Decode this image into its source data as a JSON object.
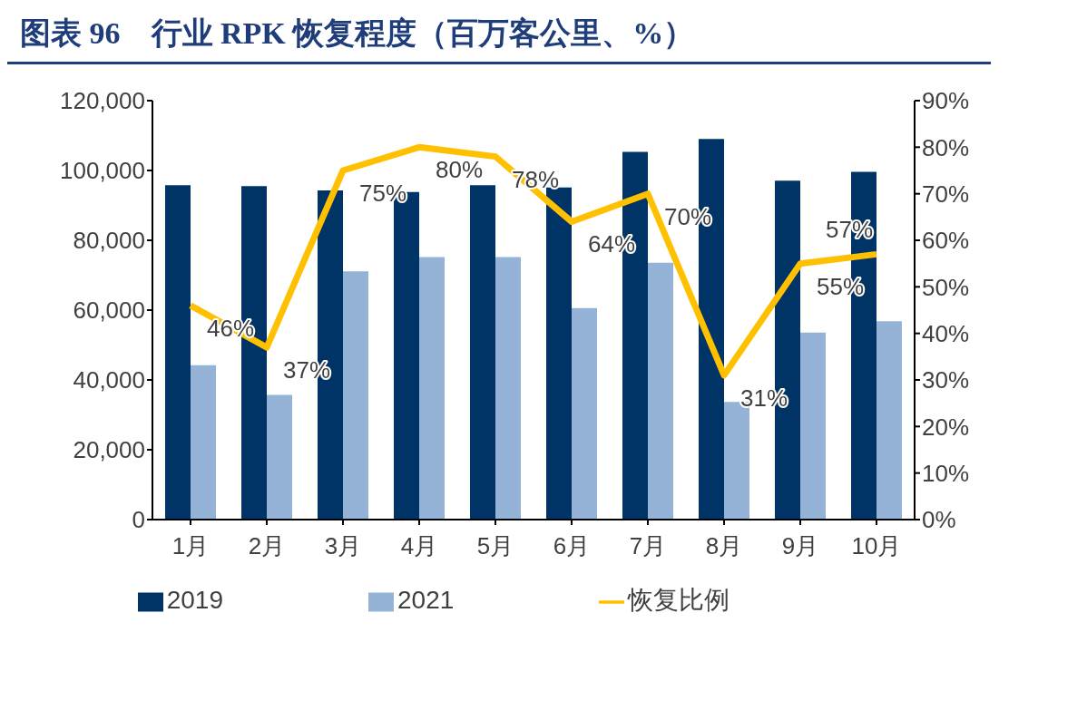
{
  "chart_data": {
    "type": "bar",
    "title": "图表 96　行业 RPK 恢复程度（百万客公里、%）",
    "categories": [
      "1月",
      "2月",
      "3月",
      "4月",
      "5月",
      "6月",
      "7月",
      "8月",
      "9月",
      "10月"
    ],
    "series": [
      {
        "name": "2019",
        "color": "#003366",
        "values": [
          95800,
          95500,
          94300,
          93800,
          95800,
          95100,
          105300,
          109000,
          97100,
          99600
        ]
      },
      {
        "name": "2021",
        "color": "#95b3d7",
        "values": [
          44200,
          35700,
          71100,
          75200,
          75200,
          60600,
          73600,
          33700,
          53600,
          56800
        ]
      },
      {
        "name": "恢复比例",
        "type": "line",
        "axis": "y2",
        "color": "#ffc000",
        "values": [
          46,
          37,
          75,
          80,
          78,
          64,
          70,
          31,
          55,
          57
        ],
        "value_labels": [
          "46%",
          "37%",
          "75%",
          "80%",
          "78%",
          "64%",
          "70%",
          "31%",
          "55%",
          "57%"
        ]
      }
    ],
    "ylim": [
      0,
      120000
    ],
    "yticks": [
      {
        "value": 0,
        "label": "0"
      },
      {
        "value": 20000,
        "label": "20,000"
      },
      {
        "value": 40000,
        "label": "40,000"
      },
      {
        "value": 60000,
        "label": "60,000"
      },
      {
        "value": 80000,
        "label": "80,000"
      },
      {
        "value": 100000,
        "label": "100,000"
      },
      {
        "value": 120000,
        "label": "120,000"
      }
    ],
    "y2lim": [
      0,
      90
    ],
    "y2ticks": [
      {
        "value": 0,
        "label": "0%"
      },
      {
        "value": 10,
        "label": "10%"
      },
      {
        "value": 20,
        "label": "20%"
      },
      {
        "value": 30,
        "label": "30%"
      },
      {
        "value": 40,
        "label": "40%"
      },
      {
        "value": 50,
        "label": "50%"
      },
      {
        "value": 60,
        "label": "60%"
      },
      {
        "value": 70,
        "label": "70%"
      },
      {
        "value": 80,
        "label": "80%"
      },
      {
        "value": 90,
        "label": "90%"
      }
    ],
    "grid": false,
    "legend": "bottom",
    "marker": "none",
    "line_style": "solid"
  }
}
